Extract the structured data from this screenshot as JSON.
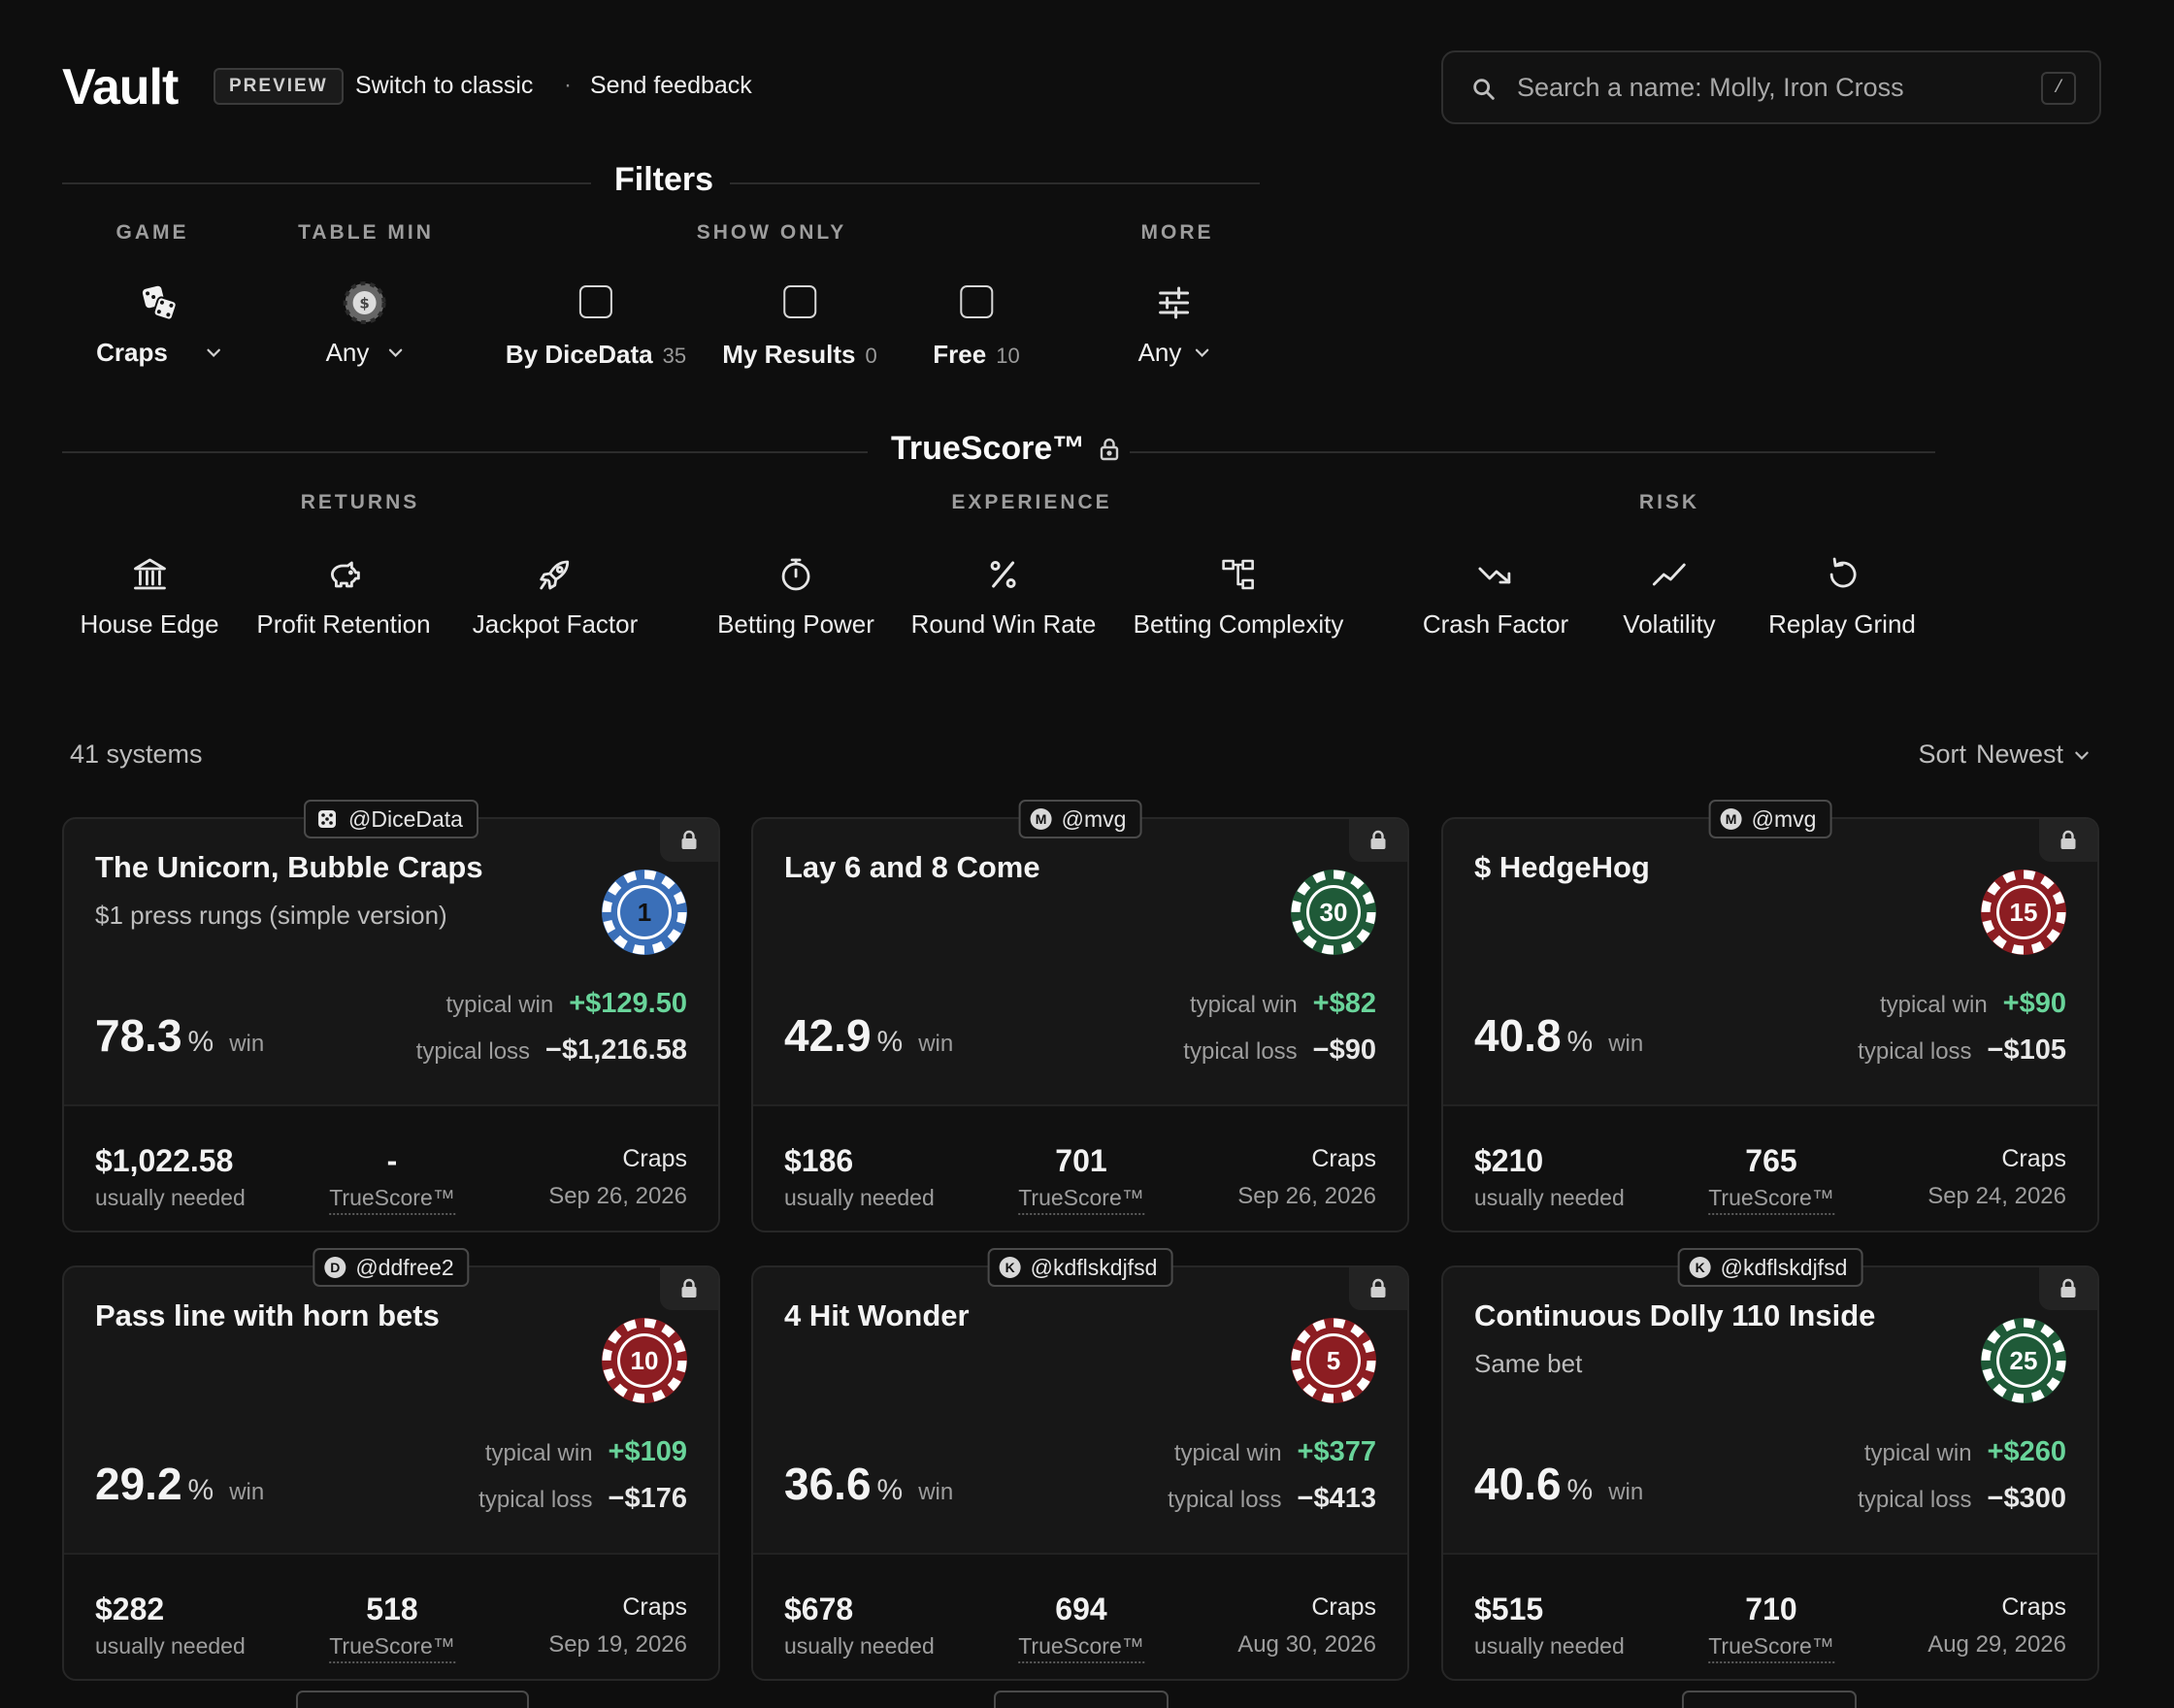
{
  "header": {
    "brand": "Vault",
    "badge": "PREVIEW",
    "switch_link": "Switch to classic",
    "separator": "·",
    "feedback_link": "Send feedback"
  },
  "search": {
    "placeholder": "Search a name: Molly, Iron Cross",
    "shortcut": "/"
  },
  "filters": {
    "title": "Filters",
    "groups": {
      "game": "GAME",
      "table_min": "TABLE MIN",
      "show_only": "SHOW ONLY",
      "more": "MORE"
    },
    "game_value": "Craps",
    "table_min_value": "Any",
    "more_value": "Any",
    "show_only": [
      {
        "label": "By DiceData",
        "count": "35",
        "checked": false
      },
      {
        "label": "My Results",
        "count": "0",
        "checked": false
      },
      {
        "label": "Free",
        "count": "10",
        "checked": false
      }
    ]
  },
  "truescore": {
    "title": "TrueScore™",
    "groups": {
      "returns": "RETURNS",
      "experience": "EXPERIENCE",
      "risk": "RISK"
    },
    "metrics": [
      {
        "label": "House Edge",
        "icon": "bank-icon"
      },
      {
        "label": "Profit Retention",
        "icon": "piggy-bank-icon"
      },
      {
        "label": "Jackpot Factor",
        "icon": "rocket-icon"
      },
      {
        "label": "Betting Power",
        "icon": "stopwatch-icon"
      },
      {
        "label": "Round Win Rate",
        "icon": "percent-icon"
      },
      {
        "label": "Betting Complexity",
        "icon": "hierarchy-icon"
      },
      {
        "label": "Crash Factor",
        "icon": "trending-down-icon"
      },
      {
        "label": "Volatility",
        "icon": "trending-up-icon"
      },
      {
        "label": "Replay Grind",
        "icon": "rotate-icon"
      }
    ]
  },
  "results": {
    "count": "41 systems",
    "sort_label": "Sort",
    "sort_value": "Newest"
  },
  "labels": {
    "win": "win",
    "percent": "%",
    "typical_win": "typical win",
    "typical_loss": "typical loss",
    "usually_needed": "usually needed",
    "truescore": "TrueScore™"
  },
  "cards": [
    {
      "author": "@DiceData",
      "avatar": "",
      "title": "The Unicorn, Bubble Craps",
      "subtitle": "$1 press rungs (simple version)",
      "chip": "1",
      "chip_color": "#3a6fb8",
      "win": "78.3",
      "typical_win": "+$129.50",
      "typical_loss": "−$1,216.58",
      "needed": "$1,022.58",
      "score": "-",
      "game": "Craps",
      "date": "Sep 26, 2026"
    },
    {
      "author": "@mvg",
      "avatar": "M",
      "title": "Lay 6 and 8 Come",
      "subtitle": "",
      "chip": "30",
      "chip_color": "#1f5a38",
      "win": "42.9",
      "typical_win": "+$82",
      "typical_loss": "−$90",
      "needed": "$186",
      "score": "701",
      "game": "Craps",
      "date": "Sep 26, 2026"
    },
    {
      "author": "@mvg",
      "avatar": "M",
      "title": "$ HedgeHog",
      "subtitle": "",
      "chip": "15",
      "chip_color": "#8c1d22",
      "win": "40.8",
      "typical_win": "+$90",
      "typical_loss": "−$105",
      "needed": "$210",
      "score": "765",
      "game": "Craps",
      "date": "Sep 24, 2026"
    },
    {
      "author": "@ddfree2",
      "avatar": "D",
      "title": "Pass line with horn bets",
      "subtitle": "",
      "chip": "10",
      "chip_color": "#8c1d22",
      "win": "29.2",
      "typical_win": "+$109",
      "typical_loss": "−$176",
      "needed": "$282",
      "score": "518",
      "game": "Craps",
      "date": "Sep 19, 2026"
    },
    {
      "author": "@kdflskdjfsd",
      "avatar": "K",
      "title": "4 Hit Wonder",
      "subtitle": "",
      "chip": "5",
      "chip_color": "#8c1d22",
      "win": "36.6",
      "typical_win": "+$377",
      "typical_loss": "−$413",
      "needed": "$678",
      "score": "694",
      "game": "Craps",
      "date": "Aug 30, 2026"
    },
    {
      "author": "@kdflskdjfsd",
      "avatar": "K",
      "title": "Continuous Dolly 110 Inside",
      "subtitle": "Same bet",
      "chip": "25",
      "chip_color": "#1f5a38",
      "win": "40.6",
      "typical_win": "+$260",
      "typical_loss": "−$300",
      "needed": "$515",
      "score": "710",
      "game": "Craps",
      "date": "Aug 29, 2026"
    }
  ]
}
